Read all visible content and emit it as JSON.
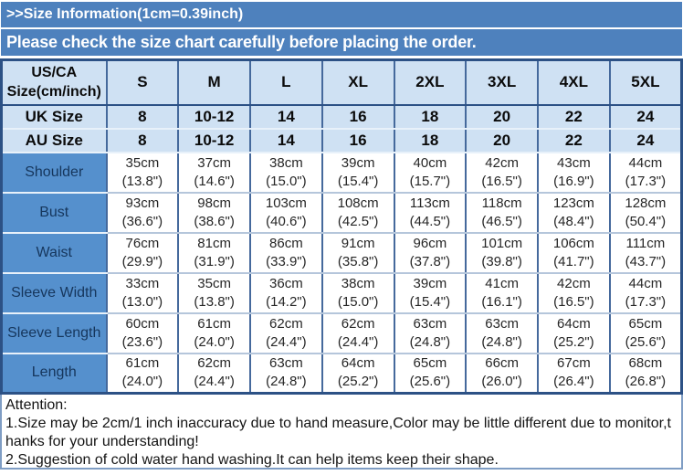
{
  "colors": {
    "banner_bg": "#4e81bd",
    "header_bg": "#cfe1f3",
    "label_bg": "#5590cd",
    "border_dark": "#45699c",
    "border_frame": "#2c5185",
    "border_light": "#b5c6db",
    "region_divider": "#e8f1fa",
    "attention_border": "#7f9dc4"
  },
  "banners": {
    "title": ">>Size Information(1cm=0.39inch)",
    "subtitle": "Please check the size chart carefully before placing the order."
  },
  "size_chart": {
    "header": {
      "label_line1": "US/CA",
      "label_line2": "Size(cm/inch)",
      "sizes": [
        "S",
        "M",
        "L",
        "XL",
        "2XL",
        "3XL",
        "4XL",
        "5XL"
      ]
    },
    "region_rows": [
      {
        "label": "UK Size",
        "values": [
          "8",
          "10-12",
          "14",
          "16",
          "18",
          "20",
          "22",
          "24"
        ]
      },
      {
        "label": "AU Size",
        "values": [
          "8",
          "10-12",
          "14",
          "16",
          "18",
          "20",
          "22",
          "24"
        ]
      }
    ],
    "measurement_rows": [
      {
        "label": "Shoulder",
        "cm": [
          "35cm",
          "37cm",
          "38cm",
          "39cm",
          "40cm",
          "42cm",
          "43cm",
          "44cm"
        ],
        "inch": [
          "(13.8\")",
          "(14.6\")",
          "(15.0\")",
          "(15.4\")",
          "(15.7\")",
          "(16.5\")",
          "(16.9\")",
          "(17.3\")"
        ]
      },
      {
        "label": "Bust",
        "cm": [
          "93cm",
          "98cm",
          "103cm",
          "108cm",
          "113cm",
          "118cm",
          "123cm",
          "128cm"
        ],
        "inch": [
          "(36.6\")",
          "(38.6\")",
          "(40.6\")",
          "(42.5\")",
          "(44.5\")",
          "(46.5\")",
          "(48.4\")",
          "(50.4\")"
        ]
      },
      {
        "label": "Waist",
        "cm": [
          "76cm",
          "81cm",
          "86cm",
          "91cm",
          "96cm",
          "101cm",
          "106cm",
          "111cm"
        ],
        "inch": [
          "(29.9\")",
          "(31.9\")",
          "(33.9\")",
          "(35.8\")",
          "(37.8\")",
          "(39.8\")",
          "(41.7\")",
          "(43.7\")"
        ]
      },
      {
        "label": "Sleeve Width",
        "cm": [
          "33cm",
          "35cm",
          "36cm",
          "38cm",
          "39cm",
          "41cm",
          "42cm",
          "44cm"
        ],
        "inch": [
          "(13.0\")",
          "(13.8\")",
          "(14.2\")",
          "(15.0\")",
          "(15.4\")",
          "(16.1\")",
          "(16.5\")",
          "(17.3\")"
        ]
      },
      {
        "label": "Sleeve Length",
        "cm": [
          "60cm",
          "61cm",
          "62cm",
          "62cm",
          "63cm",
          "63cm",
          "64cm",
          "65cm"
        ],
        "inch": [
          "(23.6\")",
          "(24.0\")",
          "(24.4\")",
          "(24.4\")",
          "(24.8\")",
          "(24.8\")",
          "(25.2\")",
          "(25.6\")"
        ]
      },
      {
        "label": "Length",
        "cm": [
          "61cm",
          "62cm",
          "63cm",
          "64cm",
          "65cm",
          "66cm",
          "67cm",
          "68cm"
        ],
        "inch": [
          "(24.0\")",
          "(24.4\")",
          "(24.8\")",
          "(25.2\")",
          "(25.6\")",
          "(26.0\")",
          "(26.4\")",
          "(26.8\")"
        ]
      }
    ]
  },
  "attention": {
    "heading": "Attention:",
    "lines": [
      "1.Size may be 2cm/1 inch inaccuracy due to hand measure,Color may be little different due to monitor,t",
      "hanks for your understanding!",
      "2.Suggestion of cold water hand washing.It can help items keep their shape."
    ]
  }
}
